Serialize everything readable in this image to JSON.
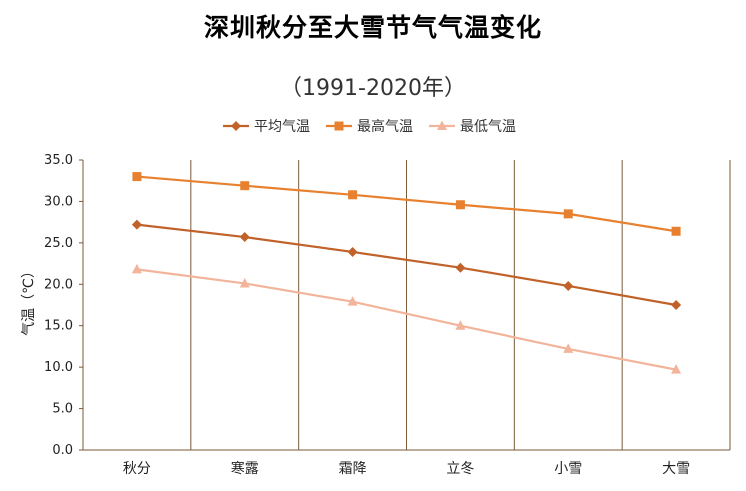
{
  "chart_data": {
    "type": "line",
    "title": "深圳秋分至大雪节气气温变化",
    "subtitle": "（1991-2020年）",
    "xlabel": "",
    "ylabel": "气温（℃）",
    "ylim": [
      0,
      35
    ],
    "yticks": [
      "0.0",
      "5.0",
      "10.0",
      "15.0",
      "20.0",
      "25.0",
      "30.0",
      "35.0"
    ],
    "categories": [
      "秋分",
      "寒露",
      "霜降",
      "立冬",
      "小雪",
      "大雪"
    ],
    "series": [
      {
        "name": "平均气温",
        "color": "#C0622A",
        "marker": "diamond",
        "values": [
          27.2,
          25.7,
          23.9,
          22.0,
          19.8,
          17.5
        ]
      },
      {
        "name": "最高气温",
        "color": "#E8812F",
        "marker": "square",
        "values": [
          33.0,
          31.9,
          30.8,
          29.6,
          28.5,
          26.4
        ]
      },
      {
        "name": "最低气温",
        "color": "#F2B49A",
        "marker": "triangle",
        "values": [
          21.8,
          20.1,
          17.9,
          15.0,
          12.2,
          9.7
        ]
      }
    ],
    "grid": "vertical-category-separators",
    "legend": "top-center"
  }
}
